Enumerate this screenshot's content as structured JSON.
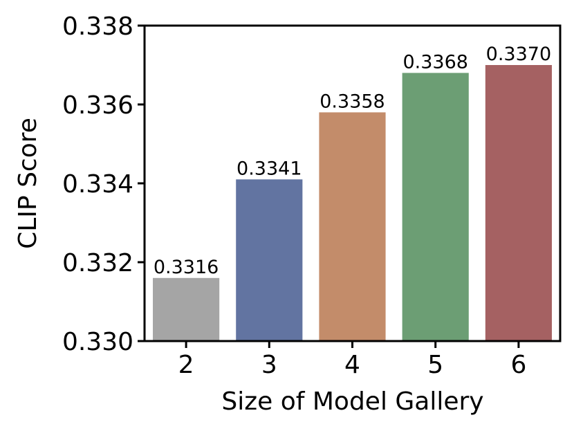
{
  "chart_data": {
    "type": "bar",
    "xlabel": "Size of Model Gallery",
    "ylabel": "CLIP Score",
    "categories": [
      "2",
      "3",
      "4",
      "5",
      "6"
    ],
    "values": [
      0.3316,
      0.3341,
      0.3358,
      0.3368,
      0.337
    ],
    "value_labels": [
      "0.3316",
      "0.3341",
      "0.3358",
      "0.3368",
      "0.3370"
    ],
    "colors": [
      "#a5a5a5",
      "#6274a1",
      "#c38c6a",
      "#6c9e74",
      "#a56162"
    ],
    "ylim": [
      0.33,
      0.338
    ],
    "yticks": [
      {
        "value": 0.33,
        "label": "0.330"
      },
      0.332,
      0.334,
      0.336,
      0.338
    ],
    "grid": false
  }
}
